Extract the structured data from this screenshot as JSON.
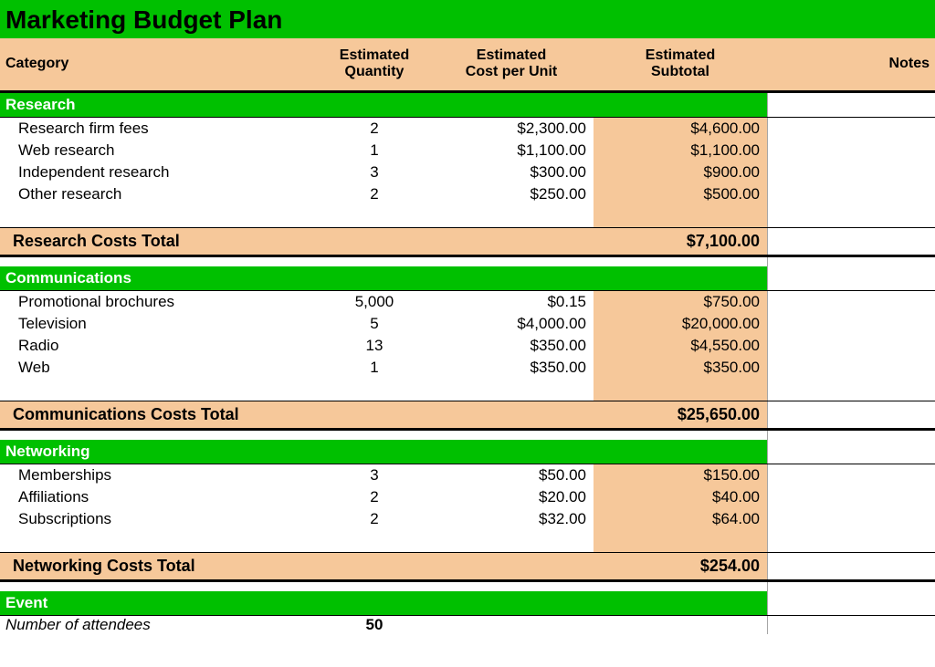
{
  "colors": {
    "green": "#00c000",
    "peach": "#f6c89a",
    "text": "#000000",
    "white": "#ffffff"
  },
  "title": "Marketing Budget Plan",
  "headers": {
    "category": "Category",
    "qty_line1": "Estimated",
    "qty_line2": "Quantity",
    "cost_line1": "Estimated",
    "cost_line2": "Cost per Unit",
    "sub_line1": "Estimated",
    "sub_line2": "Subtotal",
    "notes": "Notes"
  },
  "sections": [
    {
      "name": "Research",
      "rows": [
        {
          "label": "Research firm fees",
          "qty": "2",
          "cost": "$2,300.00",
          "sub": "$4,600.00"
        },
        {
          "label": "Web research",
          "qty": "1",
          "cost": "$1,100.00",
          "sub": "$1,100.00"
        },
        {
          "label": "Independent research",
          "qty": "3",
          "cost": "$300.00",
          "sub": "$900.00"
        },
        {
          "label": "Other research",
          "qty": "2",
          "cost": "$250.00",
          "sub": "$500.00"
        }
      ],
      "total_label": "Research Costs Total",
      "total_value": "$7,100.00"
    },
    {
      "name": "Communications",
      "rows": [
        {
          "label": "Promotional brochures",
          "qty": "5,000",
          "cost": "$0.15",
          "sub": "$750.00"
        },
        {
          "label": "Television",
          "qty": "5",
          "cost": "$4,000.00",
          "sub": "$20,000.00"
        },
        {
          "label": "Radio",
          "qty": "13",
          "cost": "$350.00",
          "sub": "$4,550.00"
        },
        {
          "label": "Web",
          "qty": "1",
          "cost": "$350.00",
          "sub": "$350.00"
        }
      ],
      "total_label": "Communications Costs Total",
      "total_value": "$25,650.00"
    },
    {
      "name": "Networking",
      "rows": [
        {
          "label": "Memberships",
          "qty": "3",
          "cost": "$50.00",
          "sub": "$150.00"
        },
        {
          "label": "Affiliations",
          "qty": "2",
          "cost": "$20.00",
          "sub": "$40.00"
        },
        {
          "label": "Subscriptions",
          "qty": "2",
          "cost": "$32.00",
          "sub": "$64.00"
        }
      ],
      "total_label": "Networking Costs Total",
      "total_value": "$254.00"
    }
  ],
  "event": {
    "heading": "Event",
    "attendees_label": "Number of attendees",
    "attendees_value": "50"
  }
}
